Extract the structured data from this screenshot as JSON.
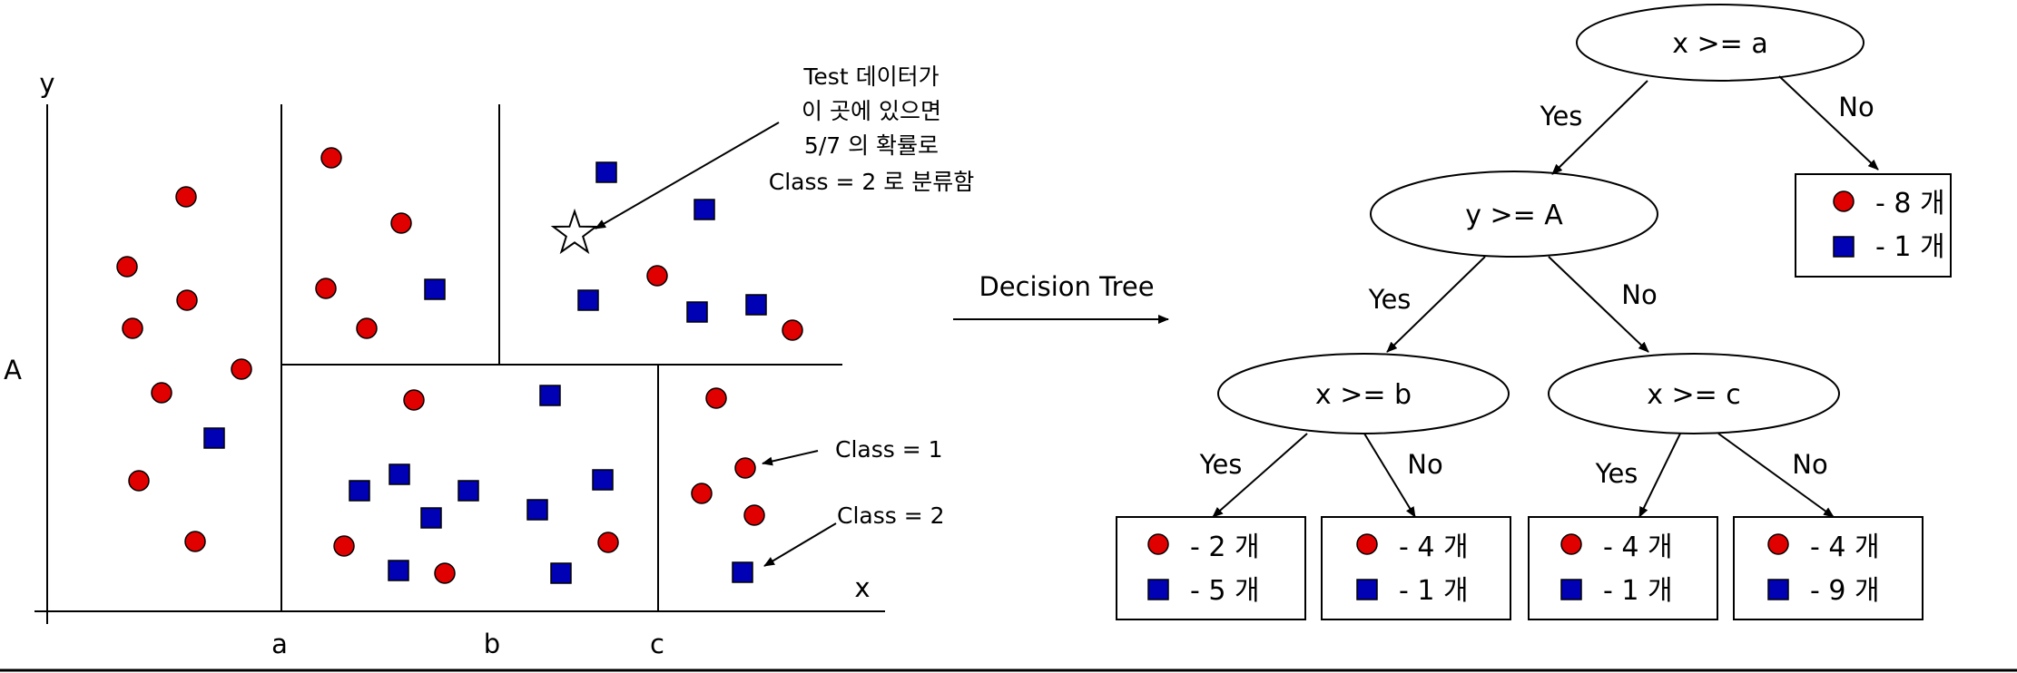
{
  "colors": {
    "class1": "#e00000",
    "class2": "#0000b4",
    "line": "#000000"
  },
  "scatter": {
    "axis_labels": {
      "x": "x",
      "y": "y",
      "A": "A",
      "a": "a",
      "b": "b",
      "c": "c"
    },
    "annotation_lines": [
      "Test 데이터가",
      "이 곳에 있으면",
      "5/7 의 확률로",
      "Class = 2 로 분류함"
    ],
    "class1_label": "Class = 1",
    "class2_label": "Class = 2",
    "test_marker": "star-icon"
  },
  "arrow_label": "Decision Tree",
  "tree": {
    "nodes": {
      "root": "x >= a",
      "left": "y >= A",
      "ll": "x >= b",
      "lr": "x >= c"
    },
    "edges": {
      "root_yes": "Yes",
      "root_no": "No",
      "left_yes": "Yes",
      "left_no": "No",
      "ll_yes": "Yes",
      "ll_no": "No",
      "lr_yes": "Yes",
      "lr_no": "No"
    },
    "leaves": {
      "root_no": {
        "c1": "- 8 개",
        "c2": "- 1 개"
      },
      "ll_yes": {
        "c1": "- 2 개",
        "c2": "- 5 개"
      },
      "ll_no": {
        "c1": "- 4 개",
        "c2": "- 1 개"
      },
      "lr_yes": {
        "c1": "- 4 개",
        "c2": "- 1 개"
      },
      "lr_no": {
        "c1": "- 4 개",
        "c2": "- 9 개"
      }
    }
  }
}
